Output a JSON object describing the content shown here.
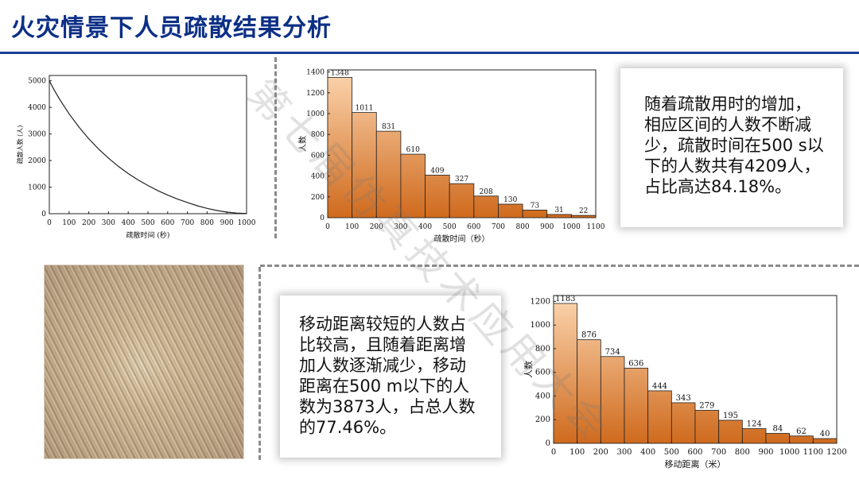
{
  "page": {
    "title": "火灾情景下人员疏散结果分析",
    "watermark": "第七届仿真技术应用大会"
  },
  "colors": {
    "title": "#0c2f86",
    "rule": "#1a3e97",
    "bar_top": "#fcd6b0",
    "bar_bottom": "#cf6a1d",
    "bar_stroke": "#222222"
  },
  "textboxes": {
    "top_right": {
      "lines": [
        "随着疏散用时的增加，",
        "相应区间的人数不断减",
        "少，疏散时间在500 s以",
        "下的人数共有4209人，",
        "占比高达84.18%。"
      ]
    },
    "bottom_left": {
      "lines": [
        "移动距离较短的人数占",
        "比较高，且随着距离增",
        "加人数逐渐减少，移动",
        "距离在500 m以下的人",
        "数为3873人，占总人数",
        "的77.46%。"
      ]
    }
  },
  "image": {
    "alt": "aerial-view-of-evacuation-trajectories"
  },
  "chart_data": [
    {
      "type": "line",
      "xlabel": "疏散时间 (秒)",
      "ylabel": "疏散人数 (人)",
      "xlim": [
        0,
        1000
      ],
      "ylim": [
        0,
        5200
      ],
      "x_ticks": [
        0,
        100,
        200,
        300,
        400,
        500,
        600,
        700,
        800,
        900,
        1000
      ],
      "y_ticks": [
        0,
        1000,
        2000,
        3000,
        4000,
        5000
      ],
      "x": [
        0,
        25,
        50,
        100,
        150,
        200,
        250,
        300,
        350,
        400,
        450,
        500,
        550,
        600,
        650,
        700,
        750,
        800,
        850,
        900,
        950,
        1000
      ],
      "y": [
        5000,
        4650,
        4330,
        3760,
        3260,
        2820,
        2430,
        2090,
        1780,
        1510,
        1270,
        1060,
        870,
        700,
        550,
        420,
        300,
        200,
        120,
        60,
        25,
        10
      ]
    },
    {
      "type": "bar",
      "xlabel": "疏散时间（秒）",
      "ylabel": "人数",
      "bin_edges": [
        0,
        100,
        200,
        300,
        400,
        500,
        600,
        700,
        800,
        900,
        1000,
        1100
      ],
      "values": [
        1348,
        1011,
        831,
        610,
        409,
        327,
        208,
        130,
        73,
        31,
        22
      ],
      "xlim": [
        0,
        1100
      ],
      "ylim": [
        0,
        1420
      ],
      "x_ticks": [
        0,
        100,
        200,
        300,
        400,
        500,
        600,
        700,
        800,
        900,
        1000,
        1100
      ],
      "y_ticks": [
        0,
        200,
        400,
        600,
        800,
        1000,
        1200,
        1400
      ],
      "grid": false
    },
    {
      "type": "bar",
      "xlabel": "移动距离（米）",
      "ylabel": "人数",
      "bin_edges": [
        0,
        100,
        200,
        300,
        400,
        500,
        600,
        700,
        800,
        900,
        1000,
        1100,
        1200
      ],
      "values": [
        1183,
        876,
        734,
        636,
        444,
        343,
        279,
        195,
        124,
        84,
        62,
        40
      ],
      "xlim": [
        0,
        1200
      ],
      "ylim": [
        0,
        1250
      ],
      "x_ticks": [
        0,
        100,
        200,
        300,
        400,
        500,
        600,
        700,
        800,
        900,
        1000,
        1100,
        1200
      ],
      "y_ticks": [
        0,
        200,
        400,
        600,
        800,
        1000,
        1200
      ],
      "grid": false
    }
  ]
}
